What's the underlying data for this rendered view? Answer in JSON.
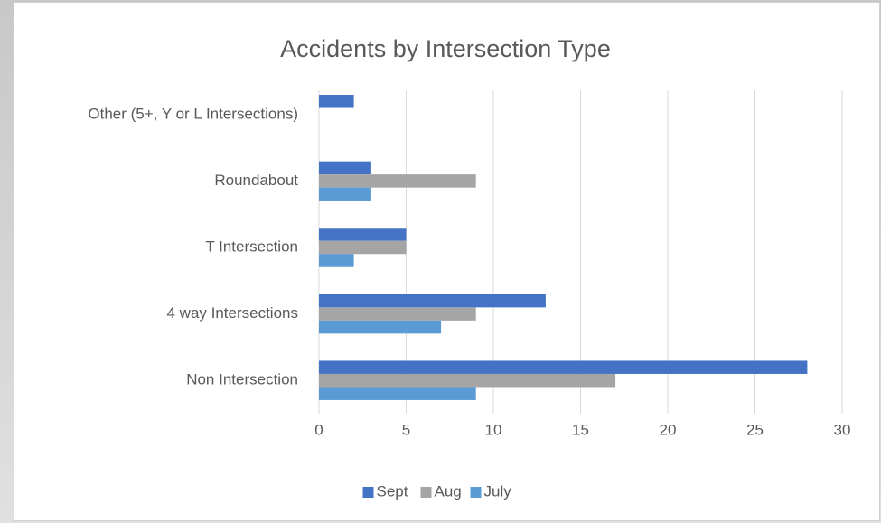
{
  "chart_data": {
    "type": "bar",
    "orientation": "horizontal",
    "title": "Accidents by Intersection Type",
    "categories": [
      "Non Intersection",
      "4 way Intersections",
      "T Intersection",
      "Roundabout",
      "Other (5+, Y or L Intersections)"
    ],
    "series": [
      {
        "name": "Sept",
        "color": "#4472c4",
        "values": [
          28,
          13,
          5,
          3,
          2
        ]
      },
      {
        "name": "Aug",
        "color": "#a5a5a5",
        "values": [
          17,
          9,
          5,
          9,
          0
        ]
      },
      {
        "name": "July",
        "color": "#5b9bd5",
        "values": [
          9,
          7,
          2,
          3,
          0
        ]
      }
    ],
    "xlim": [
      0,
      30
    ],
    "xticks": [
      0,
      5,
      10,
      15,
      20,
      25,
      30
    ],
    "grid": true,
    "legend": "bottom"
  }
}
